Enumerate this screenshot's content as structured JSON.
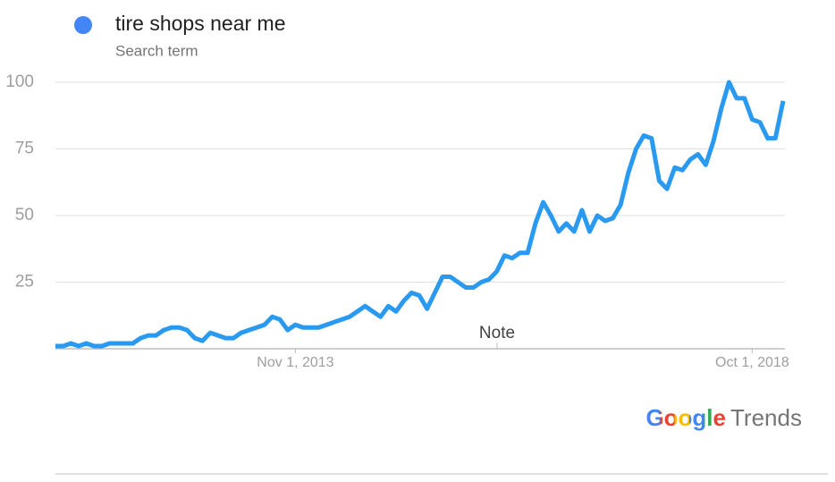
{
  "chart_data": {
    "type": "line",
    "series": [
      {
        "name": "tire shops near me",
        "color": "#2a9af0",
        "values": [
          1,
          1,
          2,
          1,
          2,
          1,
          1,
          2,
          2,
          2,
          2,
          4,
          5,
          5,
          7,
          8,
          8,
          7,
          4,
          3,
          6,
          5,
          4,
          4,
          6,
          7,
          8,
          9,
          12,
          11,
          7,
          9,
          8,
          8,
          8,
          9,
          10,
          11,
          12,
          14,
          16,
          14,
          12,
          16,
          14,
          18,
          21,
          20,
          15,
          21,
          27,
          27,
          25,
          23,
          23,
          25,
          26,
          29,
          35,
          34,
          36,
          36,
          47,
          55,
          50,
          44,
          47,
          44,
          52,
          44,
          50,
          48,
          49,
          54,
          66,
          75,
          80,
          79,
          63,
          60,
          68,
          67,
          71,
          73,
          69,
          78,
          90,
          100,
          94,
          94,
          86,
          85,
          79,
          79,
          93
        ]
      }
    ],
    "legend_color": "#4285f4",
    "legend_subtitle": "Search term",
    "categories": [
      null,
      null,
      null,
      null,
      null,
      null,
      null,
      null,
      null,
      null,
      null,
      null,
      null,
      null,
      null,
      null,
      null,
      null,
      null,
      null,
      null,
      null,
      null,
      null,
      null,
      null,
      null,
      null,
      null,
      null,
      null,
      "Nov 1, 2013",
      null,
      null,
      null,
      null,
      null,
      null,
      null,
      null,
      null,
      null,
      null,
      null,
      null,
      null,
      null,
      null,
      null,
      null,
      null,
      null,
      null,
      null,
      null,
      null,
      null,
      null,
      null,
      null,
      null,
      null,
      null,
      null,
      null,
      null,
      null,
      null,
      null,
      null,
      null,
      null,
      null,
      null,
      null,
      null,
      null,
      null,
      null,
      null,
      null,
      null,
      null,
      null,
      null,
      null,
      null,
      null,
      null,
      null,
      "Oct 1, 2018",
      null,
      null,
      null,
      null
    ],
    "ylim": [
      0,
      100
    ],
    "yticks": [
      25,
      50,
      75,
      100
    ],
    "grid": true,
    "annotations": [
      "Note"
    ],
    "logo": {
      "brand": "Google",
      "product": "Trends"
    }
  }
}
